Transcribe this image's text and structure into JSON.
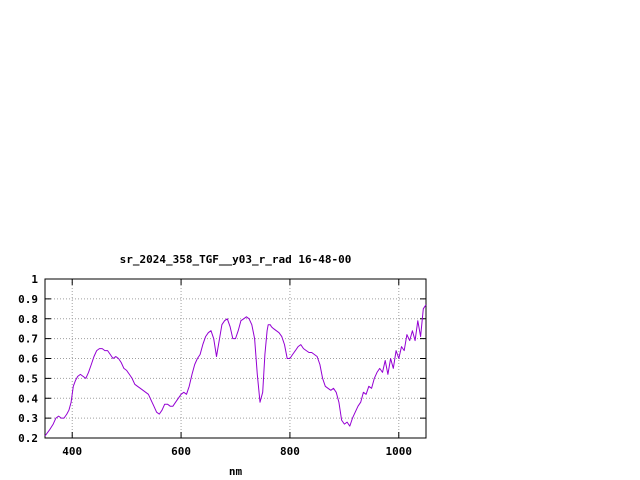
{
  "chart_data": {
    "type": "line",
    "title": "sr_2024_358_TGF__y03_r_rad 16-48-00",
    "xlabel": "nm",
    "ylabel": "",
    "xlim": [
      350,
      1050
    ],
    "ylim": [
      0.2,
      1.0
    ],
    "x_ticks": [
      400,
      600,
      800,
      1000
    ],
    "x_tick_labels": [
      "400",
      "600",
      "800",
      "1000"
    ],
    "y_ticks": [
      0.2,
      0.3,
      0.4,
      0.5,
      0.6,
      0.7,
      0.8,
      0.9,
      1.0
    ],
    "y_tick_labels": [
      "0.2",
      "0.3",
      "0.4",
      "0.5",
      "0.6",
      "0.7",
      "0.8",
      "0.9",
      "1"
    ],
    "grid": true,
    "grid_style": "dotted",
    "legend": "none",
    "series": [
      {
        "color": "#9400d3",
        "x": [
          350,
          358,
          365,
          370,
          375,
          380,
          385,
          390,
          394,
          398,
          402,
          406,
          410,
          415,
          420,
          425,
          430,
          435,
          440,
          445,
          450,
          455,
          460,
          465,
          470,
          475,
          480,
          485,
          490,
          495,
          500,
          505,
          510,
          515,
          520,
          525,
          530,
          535,
          540,
          545,
          550,
          555,
          560,
          565,
          570,
          575,
          580,
          585,
          590,
          595,
          600,
          605,
          610,
          615,
          620,
          625,
          630,
          635,
          640,
          645,
          650,
          655,
          660,
          665,
          670,
          675,
          680,
          685,
          690,
          695,
          700,
          705,
          710,
          715,
          720,
          725,
          730,
          735,
          740,
          745,
          750,
          754,
          758,
          760,
          762,
          764,
          766,
          770,
          775,
          780,
          785,
          790,
          795,
          800,
          805,
          810,
          815,
          820,
          825,
          830,
          835,
          840,
          845,
          850,
          855,
          860,
          865,
          870,
          875,
          880,
          885,
          890,
          895,
          900,
          905,
          910,
          915,
          920,
          925,
          930,
          935,
          940,
          945,
          950,
          955,
          960,
          965,
          970,
          975,
          980,
          985,
          990,
          995,
          1000,
          1005,
          1010,
          1015,
          1020,
          1025,
          1030,
          1035,
          1040,
          1045,
          1050
        ],
        "y": [
          0.21,
          0.24,
          0.27,
          0.3,
          0.31,
          0.3,
          0.3,
          0.32,
          0.34,
          0.38,
          0.46,
          0.49,
          0.51,
          0.52,
          0.51,
          0.5,
          0.53,
          0.57,
          0.61,
          0.64,
          0.65,
          0.65,
          0.64,
          0.64,
          0.62,
          0.6,
          0.61,
          0.6,
          0.58,
          0.55,
          0.54,
          0.52,
          0.5,
          0.47,
          0.46,
          0.45,
          0.44,
          0.43,
          0.42,
          0.39,
          0.36,
          0.33,
          0.32,
          0.34,
          0.37,
          0.37,
          0.36,
          0.36,
          0.38,
          0.4,
          0.42,
          0.43,
          0.42,
          0.46,
          0.52,
          0.57,
          0.6,
          0.62,
          0.67,
          0.71,
          0.73,
          0.74,
          0.7,
          0.61,
          0.69,
          0.77,
          0.79,
          0.8,
          0.76,
          0.7,
          0.7,
          0.74,
          0.79,
          0.8,
          0.81,
          0.8,
          0.77,
          0.7,
          0.52,
          0.38,
          0.43,
          0.62,
          0.74,
          0.77,
          0.77,
          0.77,
          0.76,
          0.75,
          0.74,
          0.73,
          0.71,
          0.67,
          0.6,
          0.6,
          0.62,
          0.64,
          0.66,
          0.67,
          0.65,
          0.64,
          0.63,
          0.63,
          0.62,
          0.61,
          0.57,
          0.5,
          0.46,
          0.45,
          0.44,
          0.45,
          0.43,
          0.38,
          0.29,
          0.27,
          0.28,
          0.26,
          0.3,
          0.33,
          0.36,
          0.38,
          0.43,
          0.42,
          0.46,
          0.45,
          0.5,
          0.53,
          0.55,
          0.53,
          0.59,
          0.52,
          0.6,
          0.55,
          0.64,
          0.6,
          0.66,
          0.64,
          0.72,
          0.69,
          0.74,
          0.69,
          0.79,
          0.71,
          0.85,
          0.87
        ]
      }
    ]
  }
}
